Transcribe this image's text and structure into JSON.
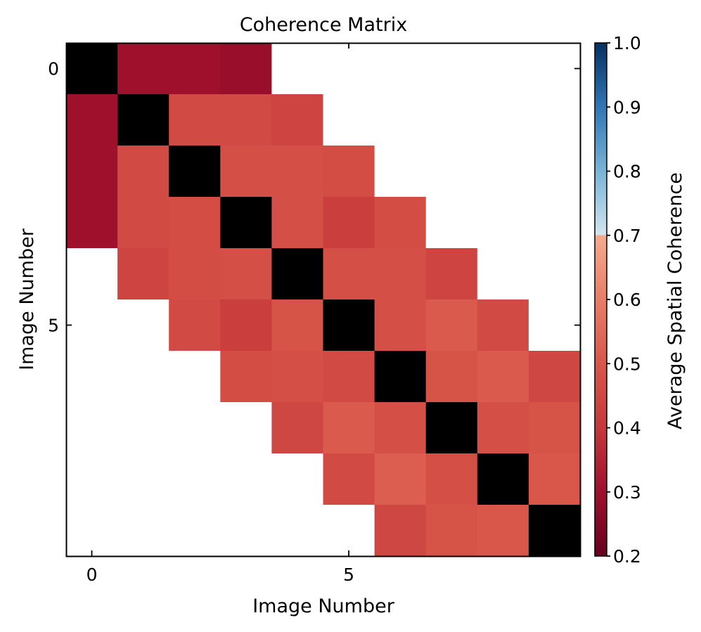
{
  "chart_data": {
    "type": "heatmap",
    "title": "Coherence Matrix",
    "xlabel": "Image Number",
    "ylabel": "Image Number",
    "colorbar_label": "Average Spatial Coherence",
    "x_ticks": [
      0,
      5
    ],
    "y_ticks": [
      0,
      5
    ],
    "colorbar_ticks": [
      "0.2",
      "0.3",
      "0.4",
      "0.5",
      "0.6",
      "0.7",
      "0.8",
      "0.9",
      "1.0"
    ],
    "vmin": 0.2,
    "vmax": 1.0,
    "colormap": "RdBu_r (upper half from 0.7 to 1.0 lightened)",
    "diagonal_color": "#000000",
    "missing_color": "#ffffff",
    "rows": 10,
    "cols": 10,
    "matrix": [
      [
        null,
        0.3,
        0.3,
        0.29,
        null,
        null,
        null,
        null,
        null,
        null
      ],
      [
        0.3,
        null,
        0.46,
        0.46,
        0.44,
        null,
        null,
        null,
        null,
        null
      ],
      [
        0.3,
        0.46,
        null,
        0.48,
        0.48,
        0.47,
        null,
        null,
        null,
        null
      ],
      [
        0.3,
        0.46,
        0.47,
        null,
        0.48,
        0.42,
        0.47,
        null,
        null,
        null
      ],
      [
        null,
        0.44,
        0.47,
        0.48,
        null,
        0.48,
        0.48,
        0.44,
        null,
        null
      ],
      [
        null,
        null,
        0.46,
        0.42,
        0.49,
        null,
        0.48,
        0.51,
        0.46,
        null
      ],
      [
        null,
        null,
        null,
        0.47,
        0.48,
        0.46,
        null,
        0.49,
        0.51,
        0.45
      ],
      [
        null,
        null,
        null,
        null,
        0.45,
        0.51,
        0.48,
        null,
        0.48,
        0.49
      ],
      [
        null,
        null,
        null,
        null,
        null,
        0.46,
        0.52,
        0.48,
        null,
        0.5
      ],
      [
        null,
        null,
        null,
        null,
        null,
        null,
        0.45,
        0.49,
        0.5,
        null
      ]
    ]
  }
}
